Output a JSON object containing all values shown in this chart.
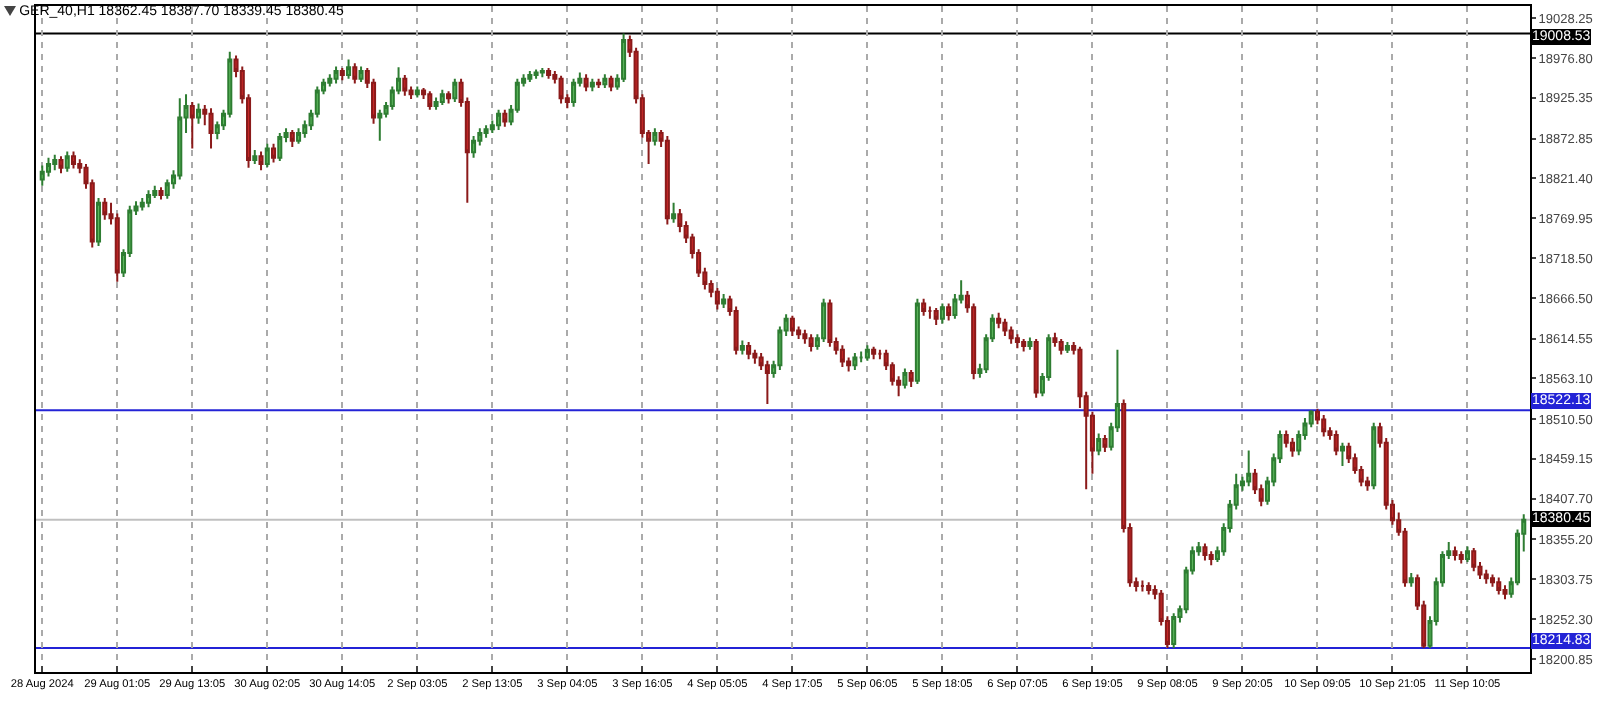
{
  "chart_data": {
    "type": "candlestick",
    "title": "GER_40,H1 18362.45 18387.70 18339.45 18380.45",
    "categories": [
      "28 Aug 2024",
      null,
      null,
      null,
      null,
      null,
      null,
      null,
      null,
      null,
      null,
      null,
      "29 Aug 01:05",
      null,
      null,
      null,
      null,
      null,
      null,
      null,
      null,
      null,
      null,
      null,
      "29 Aug 13:05",
      null,
      null,
      null,
      null,
      null,
      null,
      null,
      null,
      null,
      null,
      null,
      "30 Aug 02:05",
      null,
      null,
      null,
      null,
      null,
      null,
      null,
      null,
      null,
      null,
      null,
      "30 Aug 14:05",
      null,
      null,
      null,
      null,
      null,
      null,
      null,
      null,
      null,
      null,
      null,
      "2 Sep 03:05",
      null,
      null,
      null,
      null,
      null,
      null,
      null,
      null,
      null,
      null,
      null,
      "2 Sep 13:05",
      null,
      null,
      null,
      null,
      null,
      null,
      null,
      null,
      null,
      null,
      null,
      "3 Sep 04:05",
      null,
      null,
      null,
      null,
      null,
      null,
      null,
      null,
      null,
      null,
      null,
      "3 Sep 16:05",
      null,
      null,
      null,
      null,
      null,
      null,
      null,
      null,
      null,
      null,
      null,
      "4 Sep 05:05",
      null,
      null,
      null,
      null,
      null,
      null,
      null,
      null,
      null,
      null,
      null,
      "4 Sep 17:05",
      null,
      null,
      null,
      null,
      null,
      null,
      null,
      null,
      null,
      null,
      null,
      "5 Sep 06:05",
      null,
      null,
      null,
      null,
      null,
      null,
      null,
      null,
      null,
      null,
      null,
      "5 Sep 18:05",
      null,
      null,
      null,
      null,
      null,
      null,
      null,
      null,
      null,
      null,
      null,
      "6 Sep 07:05",
      null,
      null,
      null,
      null,
      null,
      null,
      null,
      null,
      null,
      null,
      null,
      "6 Sep 19:05",
      null,
      null,
      null,
      null,
      null,
      null,
      null,
      null,
      null,
      null,
      null,
      "9 Sep 08:05",
      null,
      null,
      null,
      null,
      null,
      null,
      null,
      null,
      null,
      null,
      null,
      "9 Sep 20:05",
      null,
      null,
      null,
      null,
      null,
      null,
      null,
      null,
      null,
      null,
      null,
      "10 Sep 09:05",
      null,
      null,
      null,
      null,
      null,
      null,
      null,
      null,
      null,
      null,
      null,
      "10 Sep 21:05",
      null,
      null,
      null,
      null,
      null,
      null,
      null,
      null,
      null,
      null,
      null,
      "11 Sep 10:05",
      null,
      null,
      null,
      null,
      null,
      null,
      null,
      null,
      null
    ],
    "ohlc": [
      [
        18820,
        18838,
        18812,
        18830
      ],
      [
        18830,
        18848,
        18824,
        18840
      ],
      [
        18840,
        18852,
        18832,
        18845
      ],
      [
        18845,
        18850,
        18828,
        18835
      ],
      [
        18835,
        18856,
        18830,
        18850
      ],
      [
        18850,
        18856,
        18834,
        18840
      ],
      [
        18840,
        18846,
        18828,
        18835
      ],
      [
        18835,
        18840,
        18808,
        18815
      ],
      [
        18815,
        18820,
        18732,
        18740
      ],
      [
        18740,
        18796,
        18734,
        18790
      ],
      [
        18790,
        18796,
        18768,
        18775
      ],
      [
        18775,
        18790,
        18762,
        18770
      ],
      [
        18770,
        18776,
        18688,
        18700
      ],
      [
        18700,
        18730,
        18694,
        18725
      ],
      [
        18725,
        18786,
        18720,
        18780
      ],
      [
        18780,
        18792,
        18774,
        18785
      ],
      [
        18785,
        18796,
        18780,
        18790
      ],
      [
        18790,
        18806,
        18784,
        18800
      ],
      [
        18800,
        18812,
        18796,
        18805
      ],
      [
        18805,
        18810,
        18794,
        18800
      ],
      [
        18800,
        18820,
        18795,
        18815
      ],
      [
        18815,
        18832,
        18808,
        18825
      ],
      [
        18825,
        18925,
        18820,
        18900
      ],
      [
        18900,
        18930,
        18880,
        18915
      ],
      [
        18915,
        18920,
        18860,
        18900
      ],
      [
        18900,
        18918,
        18892,
        18910
      ],
      [
        18910,
        18916,
        18890,
        18905
      ],
      [
        18905,
        18912,
        18860,
        18880
      ],
      [
        18880,
        18895,
        18872,
        18890
      ],
      [
        18890,
        18910,
        18884,
        18905
      ],
      [
        18905,
        18985,
        18900,
        18975
      ],
      [
        18975,
        18980,
        18952,
        18960
      ],
      [
        18960,
        18966,
        18918,
        18925
      ],
      [
        18925,
        18930,
        18835,
        18845
      ],
      [
        18845,
        18858,
        18840,
        18850
      ],
      [
        18850,
        18856,
        18832,
        18840
      ],
      [
        18840,
        18866,
        18836,
        18860
      ],
      [
        18860,
        18866,
        18842,
        18848
      ],
      [
        18848,
        18880,
        18844,
        18875
      ],
      [
        18875,
        18886,
        18868,
        18880
      ],
      [
        18880,
        18884,
        18862,
        18870
      ],
      [
        18870,
        18886,
        18866,
        18880
      ],
      [
        18880,
        18896,
        18874,
        18890
      ],
      [
        18890,
        18910,
        18884,
        18905
      ],
      [
        18905,
        18940,
        18900,
        18935
      ],
      [
        18935,
        18950,
        18930,
        18945
      ],
      [
        18945,
        18956,
        18940,
        18950
      ],
      [
        18950,
        18966,
        18944,
        18960
      ],
      [
        18960,
        18964,
        18948,
        18955
      ],
      [
        18955,
        18975,
        18950,
        18965
      ],
      [
        18965,
        18970,
        18944,
        18950
      ],
      [
        18950,
        18966,
        18946,
        18960
      ],
      [
        18960,
        18964,
        18938,
        18945
      ],
      [
        18945,
        18950,
        18892,
        18900
      ],
      [
        18900,
        18910,
        18870,
        18905
      ],
      [
        18905,
        18920,
        18900,
        18915
      ],
      [
        18915,
        18940,
        18910,
        18935
      ],
      [
        18935,
        18965,
        18930,
        18950
      ],
      [
        18950,
        18955,
        18928,
        18935
      ],
      [
        18935,
        18940,
        18924,
        18930
      ],
      [
        18930,
        18940,
        18926,
        18935
      ],
      [
        18935,
        18938,
        18924,
        18930
      ],
      [
        18930,
        18934,
        18910,
        18915
      ],
      [
        18915,
        18926,
        18910,
        18920
      ],
      [
        18920,
        18936,
        18916,
        18930
      ],
      [
        18930,
        18934,
        18918,
        18925
      ],
      [
        18925,
        18950,
        18920,
        18945
      ],
      [
        18945,
        18950,
        18914,
        18920
      ],
      [
        18920,
        18926,
        18790,
        18855
      ],
      [
        18855,
        18876,
        18848,
        18870
      ],
      [
        18870,
        18886,
        18864,
        18880
      ],
      [
        18880,
        18890,
        18874,
        18885
      ],
      [
        18885,
        18896,
        18880,
        18890
      ],
      [
        18890,
        18910,
        18884,
        18905
      ],
      [
        18905,
        18910,
        18888,
        18895
      ],
      [
        18895,
        18916,
        18890,
        18910
      ],
      [
        18910,
        18950,
        18906,
        18945
      ],
      [
        18945,
        18956,
        18940,
        18950
      ],
      [
        18950,
        18960,
        18946,
        18955
      ],
      [
        18955,
        18962,
        18950,
        18958
      ],
      [
        18958,
        18964,
        18952,
        18960
      ],
      [
        18960,
        18964,
        18950,
        18955
      ],
      [
        18955,
        18960,
        18944,
        18950
      ],
      [
        18950,
        18954,
        18918,
        18925
      ],
      [
        18925,
        18930,
        18912,
        18920
      ],
      [
        18920,
        18950,
        18914,
        18945
      ],
      [
        18945,
        18958,
        18940,
        18950
      ],
      [
        18950,
        18956,
        18934,
        18940
      ],
      [
        18940,
        18950,
        18934,
        18945
      ],
      [
        18945,
        18950,
        18938,
        18943
      ],
      [
        18943,
        18956,
        18938,
        18950
      ],
      [
        18950,
        18954,
        18934,
        18940
      ],
      [
        18940,
        18956,
        18936,
        18950
      ],
      [
        18950,
        19008.53,
        18946,
        19000
      ],
      [
        19000,
        19006,
        18978,
        18985
      ],
      [
        18985,
        18990,
        18918,
        18925
      ],
      [
        18925,
        18930,
        18874,
        18880
      ],
      [
        18880,
        18884,
        18840,
        18870
      ],
      [
        18870,
        18886,
        18864,
        18880
      ],
      [
        18880,
        18884,
        18862,
        18870
      ],
      [
        18870,
        18876,
        18762,
        18770
      ],
      [
        18770,
        18790,
        18764,
        18775
      ],
      [
        18775,
        18782,
        18752,
        18760
      ],
      [
        18760,
        18766,
        18738,
        18745
      ],
      [
        18745,
        18750,
        18718,
        18725
      ],
      [
        18725,
        18730,
        18694,
        18700
      ],
      [
        18700,
        18706,
        18678,
        18685
      ],
      [
        18685,
        18690,
        18668,
        18675
      ],
      [
        18675,
        18680,
        18652,
        18660
      ],
      [
        18660,
        18672,
        18654,
        18665
      ],
      [
        18665,
        18670,
        18644,
        18650
      ],
      [
        18650,
        18656,
        18594,
        18600
      ],
      [
        18600,
        18612,
        18594,
        18605
      ],
      [
        18605,
        18610,
        18588,
        18595
      ],
      [
        18595,
        18600,
        18582,
        18590
      ],
      [
        18590,
        18596,
        18574,
        18580
      ],
      [
        18580,
        18586,
        18530,
        18570
      ],
      [
        18570,
        18586,
        18564,
        18580
      ],
      [
        18580,
        18630,
        18574,
        18625
      ],
      [
        18625,
        18646,
        18618,
        18640
      ],
      [
        18640,
        18644,
        18618,
        18625
      ],
      [
        18625,
        18630,
        18614,
        18620
      ],
      [
        18620,
        18626,
        18608,
        18615
      ],
      [
        18615,
        18620,
        18598,
        18605
      ],
      [
        18605,
        18620,
        18600,
        18615
      ],
      [
        18615,
        18666,
        18610,
        18660
      ],
      [
        18660,
        18665,
        18604,
        18610
      ],
      [
        18610,
        18616,
        18594,
        18600
      ],
      [
        18600,
        18606,
        18578,
        18585
      ],
      [
        18585,
        18590,
        18572,
        18580
      ],
      [
        18580,
        18596,
        18574,
        18590
      ],
      [
        18590,
        18598,
        18584,
        18590
      ],
      [
        18590,
        18606,
        18586,
        18600
      ],
      [
        18600,
        18604,
        18588,
        18595
      ],
      [
        18595,
        18600,
        18588,
        18595
      ],
      [
        18595,
        18600,
        18574,
        18580
      ],
      [
        18580,
        18584,
        18554,
        18560
      ],
      [
        18560,
        18566,
        18540,
        18555
      ],
      [
        18555,
        18576,
        18550,
        18570
      ],
      [
        18570,
        18574,
        18552,
        18560
      ],
      [
        18560,
        18666,
        18556,
        18660
      ],
      [
        18660,
        18666,
        18644,
        18650
      ],
      [
        18650,
        18656,
        18640,
        18650
      ],
      [
        18650,
        18654,
        18632,
        18640
      ],
      [
        18640,
        18660,
        18634,
        18655
      ],
      [
        18655,
        18660,
        18638,
        18645
      ],
      [
        18645,
        18672,
        18640,
        18665
      ],
      [
        18665,
        18690,
        18660,
        18670
      ],
      [
        18670,
        18676,
        18648,
        18655
      ],
      [
        18655,
        18660,
        18562,
        18570
      ],
      [
        18570,
        18582,
        18564,
        18575
      ],
      [
        18575,
        18620,
        18570,
        18615
      ],
      [
        18615,
        18646,
        18610,
        18640
      ],
      [
        18640,
        18648,
        18628,
        18635
      ],
      [
        18635,
        18640,
        18618,
        18625
      ],
      [
        18625,
        18630,
        18608,
        18615
      ],
      [
        18615,
        18620,
        18602,
        18610
      ],
      [
        18610,
        18614,
        18598,
        18605
      ],
      [
        18605,
        18616,
        18600,
        18610
      ],
      [
        18610,
        18614,
        18538,
        18545
      ],
      [
        18545,
        18570,
        18540,
        18565
      ],
      [
        18565,
        18620,
        18560,
        18615
      ],
      [
        18615,
        18622,
        18604,
        18610
      ],
      [
        18610,
        18614,
        18594,
        18600
      ],
      [
        18600,
        18610,
        18596,
        18605
      ],
      [
        18605,
        18610,
        18594,
        18600
      ],
      [
        18600,
        18604,
        18525,
        18540
      ],
      [
        18540,
        18546,
        18420,
        18515
      ],
      [
        18515,
        18520,
        18440,
        18470
      ],
      [
        18470,
        18492,
        18464,
        18485
      ],
      [
        18485,
        18490,
        18468,
        18475
      ],
      [
        18475,
        18506,
        18470,
        18500
      ],
      [
        18500,
        18600,
        18494,
        18530
      ],
      [
        18530,
        18536,
        18364,
        18370
      ],
      [
        18370,
        18376,
        18294,
        18300
      ],
      [
        18300,
        18306,
        18288,
        18295
      ],
      [
        18295,
        18302,
        18288,
        18295
      ],
      [
        18295,
        18300,
        18284,
        18290
      ],
      [
        18290,
        18296,
        18278,
        18285
      ],
      [
        18285,
        18290,
        18244,
        18250
      ],
      [
        18250,
        18256,
        18214.83,
        18220
      ],
      [
        18220,
        18260,
        18214.83,
        18255
      ],
      [
        18255,
        18270,
        18248,
        18265
      ],
      [
        18265,
        18320,
        18260,
        18315
      ],
      [
        18315,
        18346,
        18310,
        18340
      ],
      [
        18340,
        18352,
        18334,
        18345
      ],
      [
        18345,
        18350,
        18328,
        18335
      ],
      [
        18335,
        18340,
        18322,
        18330
      ],
      [
        18330,
        18346,
        18326,
        18340
      ],
      [
        18340,
        18376,
        18334,
        18370
      ],
      [
        18370,
        18406,
        18364,
        18400
      ],
      [
        18400,
        18440,
        18394,
        18425
      ],
      [
        18425,
        18436,
        18418,
        18430
      ],
      [
        18430,
        18470,
        18424,
        18440
      ],
      [
        18440,
        18446,
        18414,
        18420
      ],
      [
        18420,
        18426,
        18398,
        18405
      ],
      [
        18405,
        18436,
        18400,
        18430
      ],
      [
        18430,
        18466,
        18424,
        18460
      ],
      [
        18460,
        18496,
        18454,
        18490
      ],
      [
        18490,
        18496,
        18474,
        18480
      ],
      [
        18480,
        18486,
        18462,
        18470
      ],
      [
        18470,
        18496,
        18464,
        18490
      ],
      [
        18490,
        18512,
        18484,
        18505
      ],
      [
        18505,
        18522.13,
        18500,
        18520
      ],
      [
        18520,
        18524,
        18504,
        18510
      ],
      [
        18510,
        18516,
        18488,
        18495
      ],
      [
        18495,
        18500,
        18484,
        18490
      ],
      [
        18490,
        18496,
        18464,
        18470
      ],
      [
        18470,
        18480,
        18450,
        18475
      ],
      [
        18475,
        18480,
        18454,
        18460
      ],
      [
        18460,
        18466,
        18440,
        18445
      ],
      [
        18445,
        18450,
        18424,
        18430
      ],
      [
        18430,
        18436,
        18418,
        18425
      ],
      [
        18425,
        18506,
        18420,
        18500
      ],
      [
        18500,
        18506,
        18474,
        18480
      ],
      [
        18480,
        18486,
        18394,
        18400
      ],
      [
        18400,
        18406,
        18374,
        18380
      ],
      [
        18380,
        18390,
        18360,
        18365
      ],
      [
        18365,
        18370,
        18294,
        18300
      ],
      [
        18300,
        18312,
        18294,
        18305
      ],
      [
        18305,
        18310,
        18264,
        18270
      ],
      [
        18270,
        18276,
        18214.83,
        18218
      ],
      [
        18218,
        18256,
        18214.83,
        18250
      ],
      [
        18250,
        18306,
        18244,
        18300
      ],
      [
        18300,
        18340,
        18294,
        18335
      ],
      [
        18335,
        18352,
        18330,
        18340
      ],
      [
        18340,
        18346,
        18328,
        18335
      ],
      [
        18335,
        18340,
        18324,
        18330
      ],
      [
        18330,
        18346,
        18326,
        18340
      ],
      [
        18340,
        18344,
        18314,
        18320
      ],
      [
        18320,
        18326,
        18304,
        18310
      ],
      [
        18310,
        18316,
        18298,
        18305
      ],
      [
        18305,
        18310,
        18294,
        18300
      ],
      [
        18300,
        18306,
        18284,
        18290
      ],
      [
        18290,
        18296,
        18278,
        18285
      ],
      [
        18285,
        18306,
        18280,
        18300
      ],
      [
        18300,
        18368,
        18296,
        18362.45
      ],
      [
        18362.45,
        18387.7,
        18339.45,
        18380.45
      ]
    ],
    "ylim": [
      18184,
      19044
    ],
    "yticks": [
      19028.25,
      {
        "value": 18976.8,
        "label": "18976.80"
      },
      18925.35,
      18872.85,
      {
        "value": 18821.4,
        "label": "18821.40"
      },
      18769.95,
      {
        "value": 18718.5,
        "label": "18718.50"
      },
      {
        "value": 18666.5,
        "label": "18666.50"
      },
      18614.55,
      {
        "value": 18563.1,
        "label": "18563.10"
      },
      {
        "value": 18510.5,
        "label": "18510.50"
      },
      18459.15,
      {
        "value": 18407.7,
        "label": "18407.70"
      },
      {
        "value": 18355.2,
        "label": "18355.20"
      },
      18303.75,
      {
        "value": 18252.3,
        "label": "18252.30"
      },
      18200.85
    ],
    "ref_lines": [
      {
        "axis": "y",
        "value": 19008.53,
        "label": "19008.53",
        "color": "#000000"
      },
      {
        "axis": "y",
        "value": 18522.13,
        "label": "18522.13",
        "color": "#2323d6"
      },
      {
        "axis": "y",
        "value": 18380.45,
        "label": "18380.45",
        "color": "#c0c0c0"
      },
      {
        "axis": "y",
        "value": 18214.83,
        "label": "18214.83",
        "color": "#2323d6"
      }
    ],
    "grid": "x",
    "legend": false
  }
}
